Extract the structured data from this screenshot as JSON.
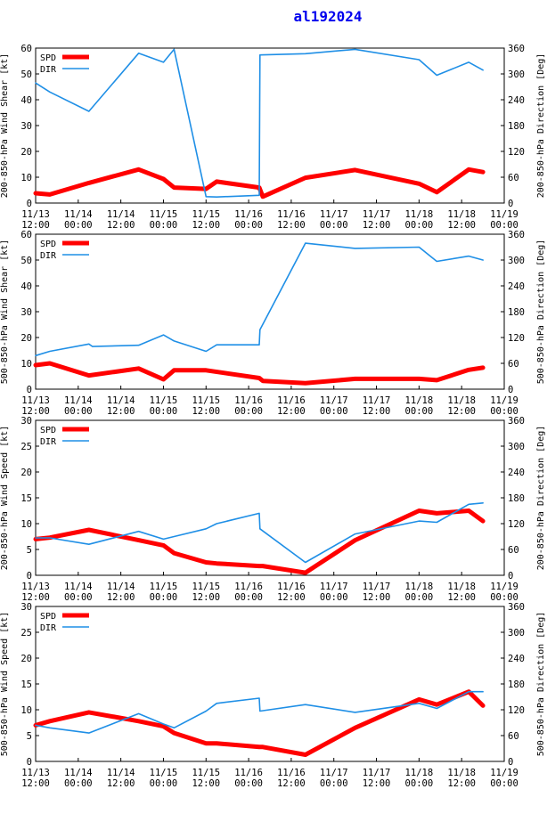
{
  "page_title": "al192024",
  "colors": {
    "spd": "#ff0000",
    "dir": "#1f8fe6",
    "axis": "#000000",
    "title": "#0000ee"
  },
  "chart_data": [
    {
      "id": "panel-shear-200-850",
      "type": "line",
      "title": "",
      "xlabel": "",
      "ylabel": "200-850-hPa Wind Shear [kt]",
      "y2label": "200-850-hPa Direction [Deg]",
      "x_ticks": [
        "11/13 12:00",
        "11/14 00:00",
        "11/14 12:00",
        "11/15 00:00",
        "11/15 12:00",
        "11/16 00:00",
        "11/16 12:00",
        "11/17 00:00",
        "11/17 12:00",
        "11/18 00:00",
        "11/18 12:00",
        "11/19 00:00"
      ],
      "xlim": [
        0,
        132
      ],
      "ylim": [
        0,
        60
      ],
      "y_ticks": [
        "0",
        "10",
        "20",
        "30",
        "40",
        "50",
        "60"
      ],
      "y2lim": [
        0,
        360
      ],
      "y2_ticks": [
        "0",
        "60",
        "120",
        "180",
        "240",
        "300",
        "360"
      ],
      "legend": [
        "SPD",
        "DIR"
      ],
      "legend_position": "top-left",
      "series": [
        {
          "name": "SPD",
          "axis": "left",
          "x": [
            0,
            4,
            15,
            29,
            36,
            39,
            48,
            51,
            63,
            64,
            76,
            90,
            108,
            113,
            122,
            126
          ],
          "values": [
            3.8,
            3.3,
            7.8,
            13,
            9.3,
            6,
            5.5,
            8.3,
            6,
            2.5,
            9.8,
            12.8,
            7.5,
            4.2,
            13,
            12
          ]
        },
        {
          "name": "DIR",
          "axis": "right",
          "x": [
            0,
            4,
            15,
            29,
            36,
            39,
            48,
            51,
            63,
            63.2,
            76,
            90,
            108,
            113,
            122,
            126
          ],
          "values": [
            279,
            258,
            213,
            348,
            327,
            357,
            15,
            14,
            18,
            344,
            347,
            357,
            333,
            297,
            327,
            309
          ]
        }
      ]
    },
    {
      "id": "panel-shear-500-850",
      "type": "line",
      "title": "",
      "xlabel": "",
      "ylabel": "500-850-hPa Wind Shear [kt]",
      "y2label": "500-850-hPa Direction [Deg]",
      "x_ticks": [
        "11/13 12:00",
        "11/14 00:00",
        "11/14 12:00",
        "11/15 00:00",
        "11/15 12:00",
        "11/16 00:00",
        "11/16 12:00",
        "11/17 00:00",
        "11/17 12:00",
        "11/18 00:00",
        "11/18 12:00",
        "11/19 00:00"
      ],
      "xlim": [
        0,
        132
      ],
      "ylim": [
        0,
        60
      ],
      "y_ticks": [
        "0",
        "10",
        "20",
        "30",
        "40",
        "50",
        "60"
      ],
      "y2lim": [
        0,
        360
      ],
      "y2_ticks": [
        "0",
        "60",
        "120",
        "180",
        "240",
        "300",
        "360"
      ],
      "legend": [
        "SPD",
        "DIR"
      ],
      "legend_position": "top-left",
      "series": [
        {
          "name": "SPD",
          "axis": "left",
          "x": [
            0,
            4,
            15,
            29,
            36,
            39,
            48,
            63,
            64,
            76,
            90,
            108,
            113,
            122,
            126
          ],
          "values": [
            9.3,
            10,
            5.3,
            8,
            3.8,
            7.3,
            7.3,
            4.3,
            3.2,
            2.3,
            4,
            4,
            3.5,
            7.5,
            8.3
          ]
        },
        {
          "name": "DIR",
          "axis": "right",
          "x": [
            0,
            4,
            15,
            16,
            29,
            36,
            39,
            48,
            51,
            63,
            63.2,
            76,
            90,
            108,
            113,
            122,
            126
          ],
          "values": [
            78,
            88,
            105,
            99,
            102,
            126,
            112,
            88,
            103,
            103,
            138,
            339,
            327,
            330,
            297,
            309,
            300
          ]
        }
      ]
    },
    {
      "id": "panel-speed-200-850",
      "type": "line",
      "title": "",
      "xlabel": "",
      "ylabel": "200-850-hPa Wind Speed [kt]",
      "y2label": "200-850-hPa Direction [Deg]",
      "x_ticks": [
        "11/13 12:00",
        "11/14 00:00",
        "11/14 12:00",
        "11/15 00:00",
        "11/15 12:00",
        "11/16 00:00",
        "11/16 12:00",
        "11/17 00:00",
        "11/17 12:00",
        "11/18 00:00",
        "11/18 12:00",
        "11/19 00:00"
      ],
      "xlim": [
        0,
        132
      ],
      "ylim": [
        0,
        30
      ],
      "y_ticks": [
        "0",
        "5",
        "10",
        "15",
        "20",
        "25",
        "30"
      ],
      "y2lim": [
        0,
        360
      ],
      "y2_ticks": [
        "0",
        "60",
        "120",
        "180",
        "240",
        "300",
        "360"
      ],
      "legend": [
        "SPD",
        "DIR"
      ],
      "legend_position": "top-left",
      "series": [
        {
          "name": "SPD",
          "axis": "left",
          "x": [
            0,
            4,
            15,
            29,
            36,
            39,
            48,
            51,
            63,
            64,
            76,
            90,
            108,
            113,
            122,
            126
          ],
          "values": [
            7,
            7.3,
            8.8,
            6.8,
            5.8,
            4.3,
            2.5,
            2.3,
            1.8,
            1.8,
            0.5,
            6.8,
            12.5,
            12,
            12.5,
            10.5
          ]
        },
        {
          "name": "DIR",
          "axis": "right",
          "x": [
            0,
            4,
            15,
            29,
            36,
            39,
            48,
            51,
            63,
            63.2,
            76,
            90,
            108,
            113,
            122,
            126
          ],
          "values": [
            87,
            87,
            72,
            102,
            84,
            90,
            108,
            120,
            144,
            108,
            30,
            96,
            126,
            123,
            165,
            168
          ]
        }
      ]
    },
    {
      "id": "panel-speed-500-850",
      "type": "line",
      "title": "",
      "xlabel": "",
      "ylabel": "500-850-hPa Wind Speed [kt]",
      "y2label": "500-850-hPa Direction [Deg]",
      "x_ticks": [
        "11/13 12:00",
        "11/14 00:00",
        "11/14 12:00",
        "11/15 00:00",
        "11/15 12:00",
        "11/16 00:00",
        "11/16 12:00",
        "11/17 00:00",
        "11/17 12:00",
        "11/18 00:00",
        "11/18 12:00",
        "11/19 00:00"
      ],
      "xlim": [
        0,
        132
      ],
      "ylim": [
        0,
        30
      ],
      "y_ticks": [
        "0",
        "5",
        "10",
        "15",
        "20",
        "25",
        "30"
      ],
      "y2lim": [
        0,
        360
      ],
      "y2_ticks": [
        "0",
        "60",
        "120",
        "180",
        "240",
        "300",
        "360"
      ],
      "legend": [
        "SPD",
        "DIR"
      ],
      "legend_position": "top-left",
      "series": [
        {
          "name": "SPD",
          "axis": "left",
          "x": [
            0,
            4,
            15,
            29,
            36,
            39,
            48,
            51,
            63,
            64,
            76,
            90,
            108,
            113,
            122,
            126
          ],
          "values": [
            7,
            7.8,
            9.5,
            7.8,
            6.8,
            5.5,
            3.5,
            3.5,
            2.8,
            2.8,
            1.3,
            6.5,
            12,
            11,
            13.5,
            10.8
          ]
        },
        {
          "name": "DIR",
          "axis": "right",
          "x": [
            0,
            4,
            15,
            29,
            36,
            39,
            48,
            51,
            63,
            63.2,
            76,
            90,
            108,
            113,
            122,
            126
          ],
          "values": [
            84,
            78,
            66,
            111,
            87,
            78,
            117,
            135,
            147,
            117,
            132,
            114,
            135,
            123,
            162,
            162
          ]
        }
      ]
    }
  ]
}
